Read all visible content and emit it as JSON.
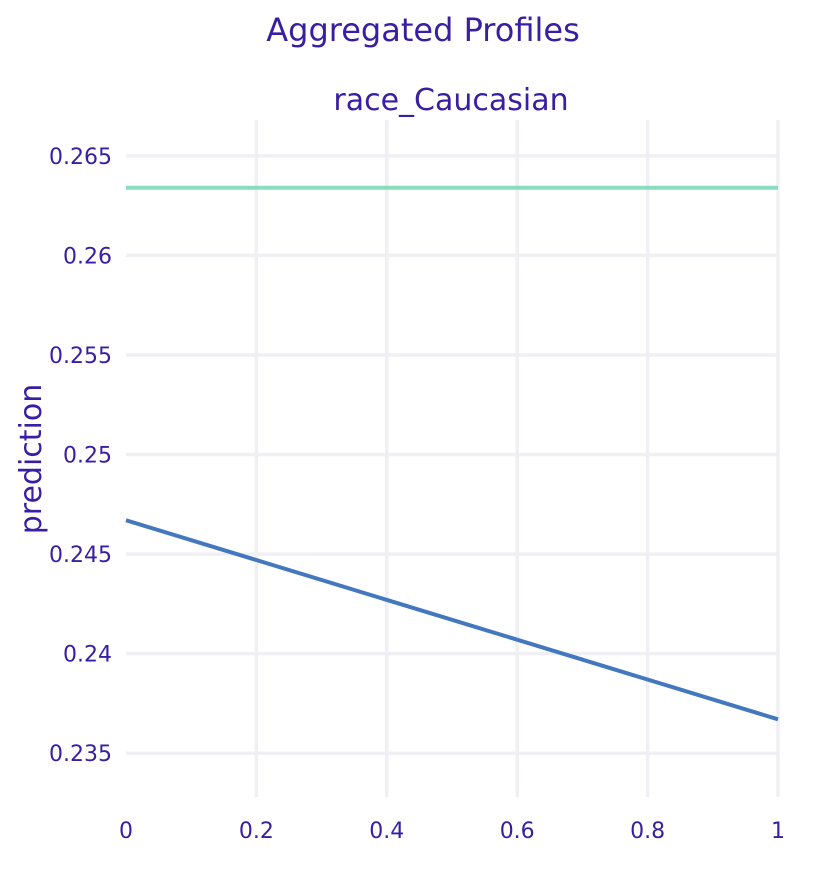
{
  "chart_data": {
    "type": "line",
    "title": "Aggregated Profiles",
    "subtitle": "race_Caucasian",
    "xlabel": "",
    "ylabel": "prediction",
    "xlim": [
      0,
      1
    ],
    "ylim": [
      0.2328,
      0.2668
    ],
    "x_ticks": [
      0,
      0.2,
      0.4,
      0.6,
      0.8,
      1
    ],
    "x_tick_labels": [
      "0",
      "0.2",
      "0.4",
      "0.6",
      "0.8",
      "1"
    ],
    "y_ticks": [
      0.235,
      0.24,
      0.245,
      0.25,
      0.255,
      0.26,
      0.265
    ],
    "y_tick_labels": [
      "0.235",
      "0.24",
      "0.245",
      "0.25",
      "0.255",
      "0.26",
      "0.265"
    ],
    "grid": true,
    "x": [
      0,
      1
    ],
    "series": [
      {
        "values": [
          0.2634,
          0.2634
        ],
        "color": "#8bdcbe"
      },
      {
        "values": [
          0.2467,
          0.2367
        ],
        "color": "#4378bf"
      }
    ]
  }
}
